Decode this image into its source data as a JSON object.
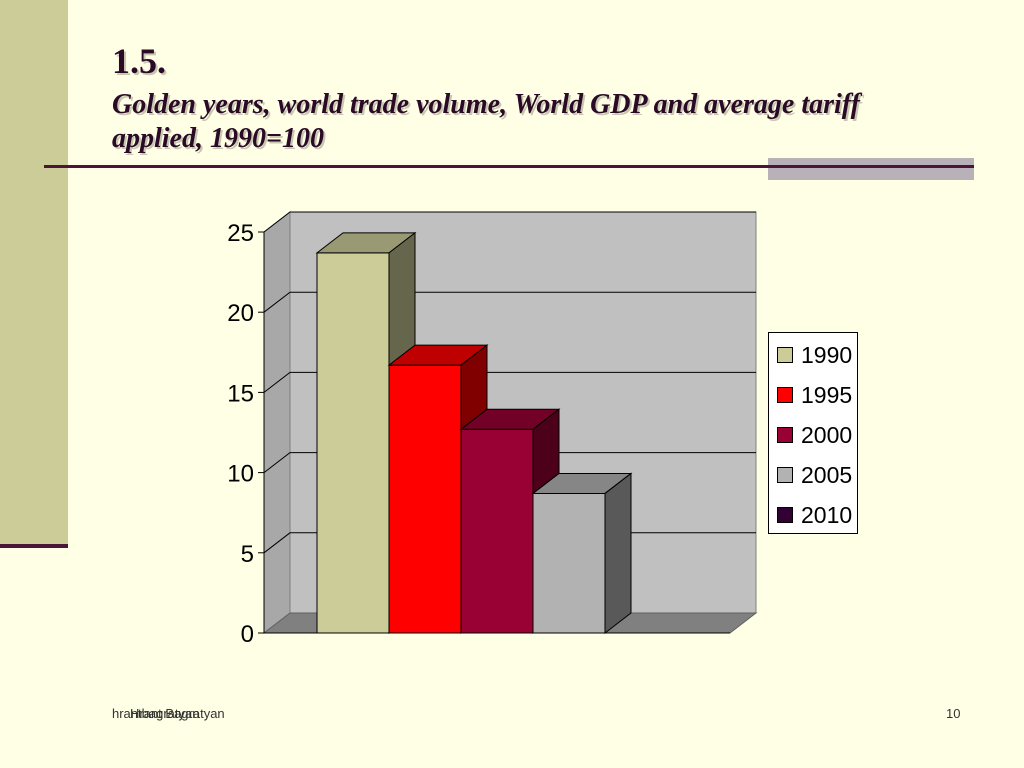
{
  "slide": {
    "number": "1.5.",
    "title": "Golden years, world trade volume, World GDP and average tariff applied, 1990=100",
    "footer_email": "hrantbagratyan",
    "footer_author": "Hrant Bagratyan",
    "page_number": "10"
  },
  "colors": {
    "background": "#ffffe6",
    "left_band": "#cccc99",
    "accent": "#4a1538",
    "wall": "#c0c0c0",
    "floor": "#808080"
  },
  "chart_data": {
    "type": "bar",
    "style": "3d-column",
    "categories": [
      ""
    ],
    "series": [
      {
        "name": "1990",
        "values": [
          23.7
        ],
        "color": "#cccc99"
      },
      {
        "name": "1995",
        "values": [
          16.7
        ],
        "color": "#ff0000"
      },
      {
        "name": "2000",
        "values": [
          12.7
        ],
        "color": "#990033"
      },
      {
        "name": "2005",
        "values": [
          8.7
        ],
        "color": "#b2b2b2"
      },
      {
        "name": "2010",
        "values": [
          0
        ],
        "color": "#330033"
      }
    ],
    "y_ticks": [
      "0",
      "5",
      "10",
      "15",
      "20",
      "25"
    ],
    "ylim": [
      0,
      25
    ],
    "grid": true,
    "legend": "right",
    "title": "",
    "xlabel": "",
    "ylabel": ""
  }
}
